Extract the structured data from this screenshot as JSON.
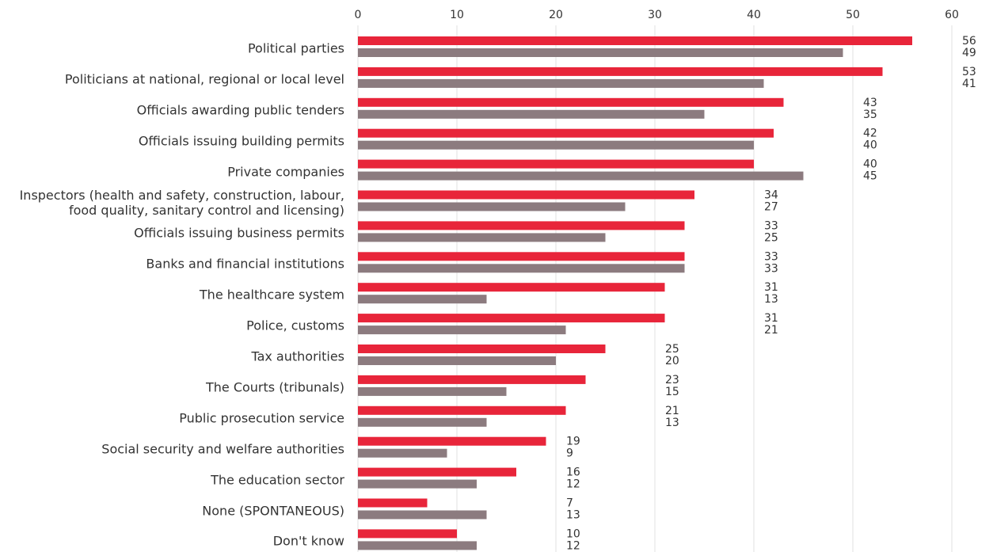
{
  "chart_data": {
    "type": "bar",
    "orientation": "horizontal",
    "categories": [
      "Political parties",
      "Politicians at national, regional or local level",
      "Officials awarding public tenders",
      "Officials issuing building permits",
      "Private companies",
      "Inspectors (health and safety, construction, labour,\nfood quality, sanitary control and licensing)",
      "Officials issuing business permits",
      "Banks and financial institutions",
      "The healthcare system",
      "Police, customs",
      "Tax authorities",
      "The Courts (tribunals)",
      "Public prosecution service",
      "Social security and welfare authorities",
      "The education sector",
      "None (SPONTANEOUS)",
      "Don't know"
    ],
    "series": [
      {
        "color": "#e8253a",
        "values": [
          56,
          53,
          43,
          42,
          40,
          34,
          33,
          33,
          31,
          31,
          25,
          23,
          21,
          19,
          16,
          7,
          10
        ]
      },
      {
        "color": "#8c7b7f",
        "values": [
          49,
          41,
          35,
          40,
          45,
          27,
          25,
          33,
          13,
          21,
          20,
          15,
          13,
          9,
          12,
          13,
          12
        ]
      }
    ],
    "xlim": [
      0,
      60
    ],
    "xticks": [
      0,
      10,
      20,
      30,
      40,
      50,
      60
    ],
    "grid": true
  }
}
